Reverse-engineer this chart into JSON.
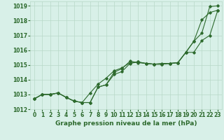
{
  "xlabel": "Graphe pression niveau de la mer (hPa)",
  "x": [
    0,
    1,
    2,
    3,
    4,
    5,
    6,
    7,
    8,
    9,
    10,
    11,
    12,
    13,
    14,
    15,
    16,
    17,
    18,
    19,
    20,
    21,
    22,
    23
  ],
  "line1": [
    1012.7,
    1013.0,
    1013.0,
    1013.1,
    1012.8,
    1012.55,
    1012.45,
    1012.45,
    1013.5,
    1013.65,
    1014.35,
    1014.55,
    1015.1,
    1015.2,
    1015.1,
    1015.05,
    1015.05,
    1015.1,
    1015.15,
    1015.85,
    1016.6,
    1018.05,
    1018.55,
    1018.7
  ],
  "line2": [
    1012.7,
    1013.0,
    1013.0,
    1013.1,
    1012.8,
    1012.55,
    1012.45,
    1012.45,
    1013.5,
    1013.65,
    1014.5,
    1014.75,
    1015.25,
    1015.15,
    1015.1,
    1015.05,
    1015.05,
    1015.1,
    1015.15,
    1015.85,
    1015.85,
    1016.65,
    1017.0,
    1018.7
  ],
  "line3": [
    1012.7,
    1013.0,
    1013.0,
    1013.1,
    1012.8,
    1012.55,
    1012.45,
    1013.1,
    1013.7,
    1014.1,
    1014.6,
    1014.8,
    1015.15,
    1015.2,
    1015.1,
    1015.05,
    1015.1,
    1015.1,
    1015.15,
    1015.85,
    1016.6,
    1017.15,
    1018.95,
    1019.0
  ],
  "line_color": "#2d6a2d",
  "bg_color": "#d8f0e8",
  "grid_color": "#b8d8c8",
  "ylim_min": 1012.0,
  "ylim_max": 1019.3,
  "yticks": [
    1012,
    1013,
    1014,
    1015,
    1016,
    1017,
    1018,
    1019
  ],
  "xticks": [
    0,
    1,
    2,
    3,
    4,
    5,
    6,
    7,
    8,
    9,
    10,
    11,
    12,
    13,
    14,
    15,
    16,
    17,
    18,
    19,
    20,
    21,
    22,
    23
  ],
  "xlabel_fontsize": 6.5,
  "tick_fontsize": 5.5
}
